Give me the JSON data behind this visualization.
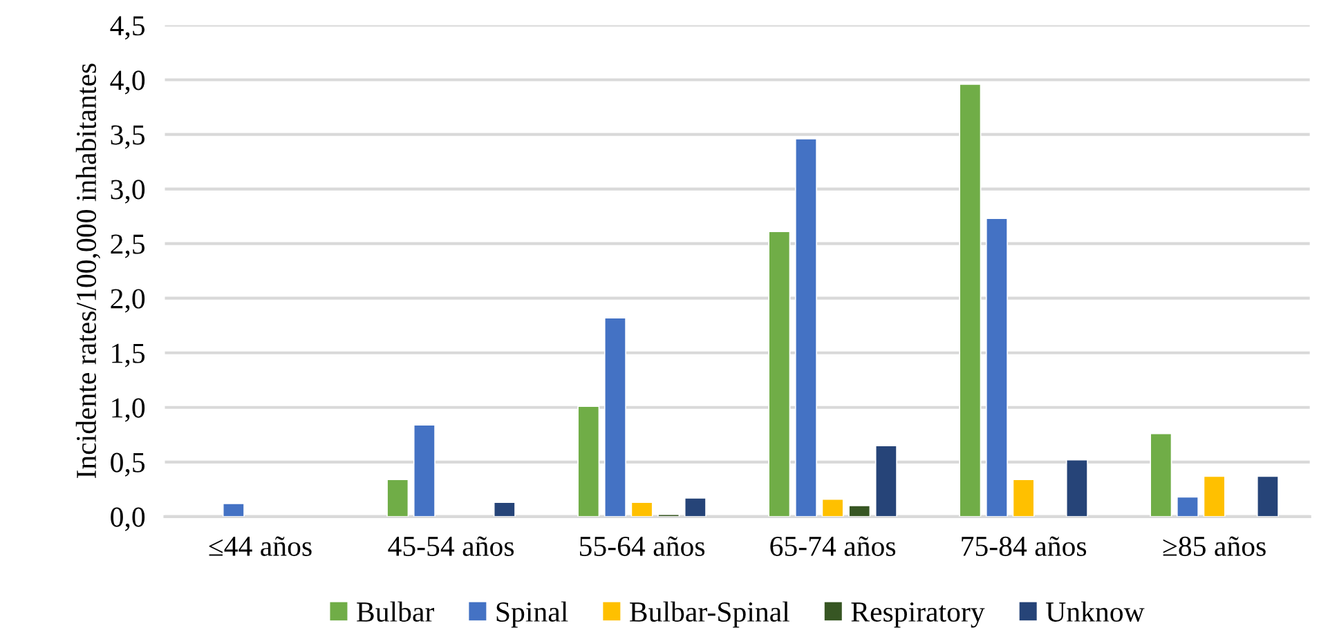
{
  "chart_data": {
    "type": "bar",
    "ylabel": "Incidente rates/100,000 inhabitantes",
    "categories": [
      "≤44 años",
      "45-54 años",
      "55-64 años",
      "65-74 años",
      "75-84 años",
      "≥85 años"
    ],
    "series": [
      {
        "name": "Bulbar",
        "color": "#70ad47",
        "values": [
          null,
          0.34,
          1.01,
          2.61,
          3.96,
          0.76
        ]
      },
      {
        "name": "Spinal",
        "color": "#4472c4",
        "values": [
          0.12,
          0.84,
          1.82,
          3.46,
          2.73,
          0.18
        ]
      },
      {
        "name": "Bulbar-Spinal",
        "color": "#ffc000",
        "values": [
          null,
          null,
          0.13,
          0.16,
          0.34,
          0.37
        ]
      },
      {
        "name": "Respiratory",
        "color": "#375623",
        "values": [
          null,
          null,
          0.02,
          0.1,
          null,
          null
        ]
      },
      {
        "name": "Unknow",
        "color": "#264478",
        "values": [
          null,
          0.13,
          0.17,
          0.65,
          0.52,
          0.37
        ]
      }
    ],
    "ylim": [
      0,
      4.5
    ],
    "yticks": [
      {
        "value": 0,
        "label": "0,0"
      },
      {
        "value": 0.5,
        "label": "0,5"
      },
      {
        "value": 1,
        "label": "1,0"
      },
      {
        "value": 1.5,
        "label": "1,5"
      },
      {
        "value": 2,
        "label": "2,0"
      },
      {
        "value": 2.5,
        "label": "2,5"
      },
      {
        "value": 3,
        "label": "3,0"
      },
      {
        "value": 3.5,
        "label": "3,5"
      },
      {
        "value": 4,
        "label": "4,0"
      },
      {
        "value": 4.5,
        "label": "4,5"
      }
    ],
    "grid": "y",
    "legend": "bottom"
  }
}
